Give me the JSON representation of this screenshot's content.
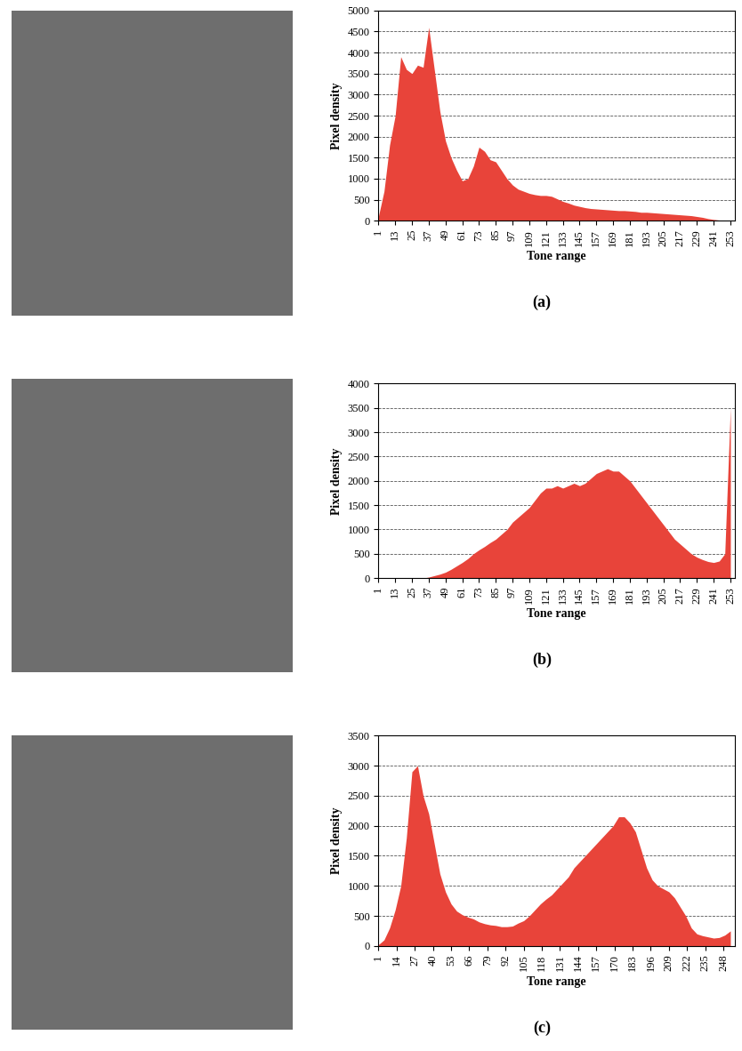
{
  "chart_data": [
    {
      "type": "area",
      "title": "(a)",
      "x_label": "Tone range",
      "y_label": "Pixel density",
      "color": "#e8443a",
      "grid": true,
      "x": [
        1,
        5,
        9,
        13,
        17,
        21,
        25,
        29,
        33,
        37,
        41,
        45,
        49,
        53,
        57,
        61,
        65,
        69,
        73,
        77,
        81,
        85,
        89,
        93,
        97,
        101,
        105,
        109,
        113,
        117,
        121,
        125,
        129,
        133,
        137,
        141,
        145,
        149,
        153,
        157,
        161,
        165,
        169,
        173,
        177,
        181,
        185,
        189,
        193,
        197,
        201,
        205,
        209,
        213,
        217,
        221,
        225,
        229,
        233,
        237,
        241,
        245,
        249,
        253
      ],
      "values": [
        100,
        700,
        1800,
        2500,
        3900,
        3600,
        3500,
        3700,
        3650,
        4600,
        3600,
        2600,
        1900,
        1500,
        1200,
        950,
        1000,
        1300,
        1750,
        1650,
        1450,
        1400,
        1200,
        1000,
        850,
        750,
        700,
        650,
        620,
        600,
        600,
        580,
        520,
        460,
        420,
        370,
        340,
        310,
        290,
        280,
        270,
        260,
        250,
        240,
        240,
        230,
        220,
        200,
        200,
        190,
        180,
        170,
        160,
        150,
        140,
        130,
        120,
        100,
        80,
        50,
        30,
        15,
        10,
        5
      ],
      "xlim": [
        1,
        256
      ],
      "xticks": [
        1,
        13,
        25,
        37,
        49,
        61,
        73,
        85,
        97,
        109,
        121,
        133,
        145,
        157,
        169,
        181,
        193,
        205,
        217,
        229,
        241,
        253
      ],
      "ylim": [
        0,
        5000
      ],
      "yticks": [
        0,
        500,
        1000,
        1500,
        2000,
        2500,
        3000,
        3500,
        4000,
        4500,
        5000
      ]
    },
    {
      "type": "area",
      "title": "(b)",
      "x_label": "Tone range",
      "y_label": "Pixel density",
      "color": "#e8443a",
      "grid": true,
      "x": [
        1,
        5,
        9,
        13,
        17,
        21,
        25,
        29,
        33,
        37,
        41,
        45,
        49,
        53,
        57,
        61,
        65,
        69,
        73,
        77,
        81,
        85,
        89,
        93,
        97,
        101,
        105,
        109,
        113,
        117,
        121,
        125,
        129,
        133,
        137,
        141,
        145,
        149,
        153,
        157,
        161,
        165,
        169,
        173,
        177,
        181,
        185,
        189,
        193,
        197,
        201,
        205,
        209,
        213,
        217,
        221,
        225,
        229,
        233,
        237,
        241,
        245,
        249,
        253
      ],
      "values": [
        0,
        0,
        0,
        0,
        0,
        0,
        0,
        0,
        0,
        20,
        50,
        80,
        120,
        180,
        250,
        320,
        400,
        500,
        580,
        650,
        730,
        800,
        900,
        1000,
        1150,
        1250,
        1350,
        1450,
        1600,
        1750,
        1850,
        1850,
        1900,
        1850,
        1900,
        1950,
        1900,
        1950,
        2050,
        2150,
        2200,
        2250,
        2200,
        2200,
        2100,
        2000,
        1850,
        1700,
        1550,
        1400,
        1250,
        1100,
        950,
        800,
        700,
        600,
        500,
        430,
        380,
        340,
        320,
        350,
        500,
        3500
      ],
      "xlim": [
        1,
        256
      ],
      "xticks": [
        1,
        13,
        25,
        37,
        49,
        61,
        73,
        85,
        97,
        109,
        121,
        133,
        145,
        157,
        169,
        181,
        193,
        205,
        217,
        229,
        241,
        253
      ],
      "ylim": [
        0,
        4000
      ],
      "yticks": [
        0,
        500,
        1000,
        1500,
        2000,
        2500,
        3000,
        3500,
        4000
      ]
    },
    {
      "type": "area",
      "title": "(c)",
      "x_label": "Tone range",
      "y_label": "Pixel density",
      "color": "#e8443a",
      "grid": true,
      "x": [
        1,
        5,
        9,
        13,
        17,
        21,
        25,
        29,
        33,
        37,
        41,
        45,
        49,
        53,
        57,
        61,
        65,
        69,
        73,
        77,
        81,
        85,
        89,
        93,
        97,
        101,
        105,
        109,
        113,
        117,
        121,
        125,
        129,
        133,
        137,
        141,
        145,
        149,
        153,
        157,
        161,
        165,
        169,
        173,
        177,
        181,
        185,
        189,
        193,
        197,
        201,
        205,
        209,
        213,
        217,
        221,
        225,
        229,
        233,
        237,
        241,
        245,
        249,
        253
      ],
      "values": [
        20,
        100,
        300,
        600,
        1000,
        1800,
        2900,
        3000,
        2500,
        2200,
        1700,
        1200,
        900,
        700,
        580,
        520,
        480,
        450,
        400,
        370,
        350,
        340,
        320,
        320,
        330,
        380,
        420,
        500,
        600,
        700,
        780,
        850,
        950,
        1050,
        1150,
        1300,
        1400,
        1500,
        1600,
        1700,
        1800,
        1900,
        2000,
        2150,
        2150,
        2050,
        1900,
        1600,
        1300,
        1100,
        1000,
        950,
        900,
        800,
        650,
        500,
        300,
        200,
        170,
        150,
        130,
        140,
        180,
        250
      ],
      "xlim": [
        1,
        256
      ],
      "xticks": [
        1,
        14,
        27,
        40,
        53,
        66,
        79,
        92,
        105,
        118,
        131,
        144,
        157,
        170,
        183,
        196,
        209,
        222,
        235,
        248
      ],
      "ylim": [
        0,
        3500
      ],
      "yticks": [
        0,
        500,
        1000,
        1500,
        2000,
        2500,
        3000,
        3500
      ]
    }
  ]
}
